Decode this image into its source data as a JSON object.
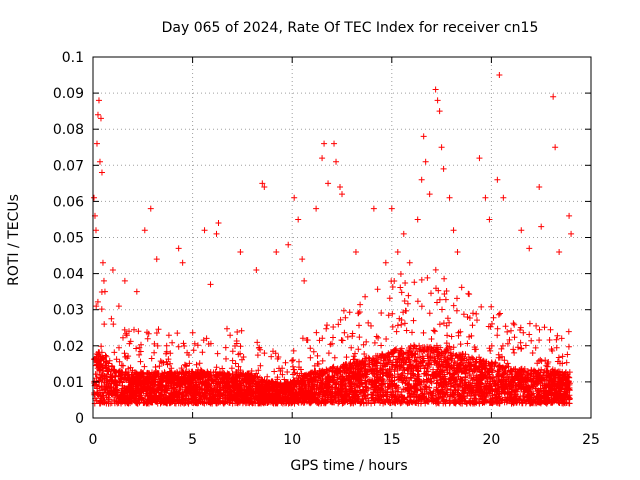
{
  "chart_data": {
    "type": "scatter",
    "title": "Day 065 of 2024, Rate Of TEC Index for receiver cn15",
    "xlabel": "GPS time / hours",
    "ylabel": "ROTI / TECUs",
    "xlim": [
      0,
      25
    ],
    "ylim": [
      0,
      0.1
    ],
    "x_ticks": [
      0,
      5,
      10,
      15,
      20,
      25
    ],
    "x_tick_labels": [
      "0",
      "5",
      "10",
      "15",
      "20",
      "25"
    ],
    "y_ticks": [
      0,
      0.01,
      0.02,
      0.03,
      0.04,
      0.05,
      0.06,
      0.07,
      0.08,
      0.09,
      0.1
    ],
    "y_tick_labels": [
      "0",
      "0.01",
      "0.02",
      "0.03",
      "0.04",
      "0.05",
      "0.06",
      "0.07",
      "0.08",
      "0.09",
      "0.1"
    ],
    "grid": true,
    "marker": "+",
    "color": "#ff0000",
    "series": [
      {
        "name": "ROTI",
        "x": [
          0.05,
          0.1,
          0.15,
          0.2,
          0.25,
          0.3,
          0.35,
          0.4,
          0.45,
          0.5,
          0.55,
          0.6,
          1.0,
          1.3,
          1.6,
          2.2,
          2.6,
          2.9,
          3.2,
          4.3,
          4.5,
          5.6,
          5.9,
          6.2,
          6.3,
          7.4,
          8.2,
          8.5,
          8.6,
          9.2,
          9.8,
          10.1,
          10.3,
          10.5,
          10.6,
          11.2,
          11.5,
          11.6,
          11.8,
          12.1,
          12.2,
          12.4,
          12.5,
          13.2,
          14.1,
          14.7,
          15.0,
          15.3,
          15.6,
          15.9,
          16.3,
          16.5,
          16.6,
          16.7,
          16.9,
          17.2,
          17.3,
          17.4,
          17.5,
          17.6,
          17.9,
          18.1,
          18.3,
          19.4,
          19.7,
          19.9,
          20.3,
          20.4,
          20.6,
          21.5,
          21.9,
          22.4,
          22.5,
          23.1,
          23.2,
          23.4,
          23.9,
          24.0
        ],
        "y": [
          0.061,
          0.056,
          0.052,
          0.076,
          0.084,
          0.088,
          0.071,
          0.083,
          0.068,
          0.043,
          0.038,
          0.035,
          0.041,
          0.031,
          0.038,
          0.035,
          0.052,
          0.058,
          0.044,
          0.047,
          0.043,
          0.052,
          0.037,
          0.051,
          0.054,
          0.046,
          0.041,
          0.065,
          0.064,
          0.046,
          0.048,
          0.061,
          0.055,
          0.044,
          0.038,
          0.058,
          0.072,
          0.076,
          0.065,
          0.076,
          0.071,
          0.064,
          0.062,
          0.046,
          0.058,
          0.043,
          0.058,
          0.046,
          0.051,
          0.043,
          0.055,
          0.066,
          0.078,
          0.071,
          0.062,
          0.091,
          0.088,
          0.085,
          0.075,
          0.069,
          0.061,
          0.052,
          0.046,
          0.072,
          0.061,
          0.055,
          0.066,
          0.095,
          0.061,
          0.052,
          0.047,
          0.064,
          0.053,
          0.089,
          0.075,
          0.046,
          0.056,
          0.051
        ]
      }
    ]
  }
}
